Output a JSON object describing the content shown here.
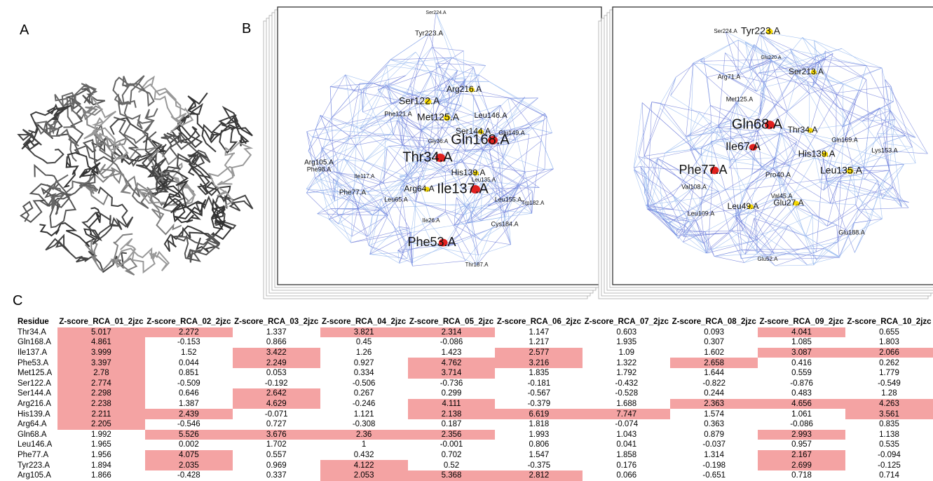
{
  "panel_labels": [
    "A",
    "B",
    "C"
  ],
  "network_left": {
    "nodes": [
      "Ser224.A",
      "Tyr223.A",
      "Arg216.A",
      "Ser122.A",
      "Phe121.A",
      "Met125.A",
      "Leu146.A",
      "Ser144.A",
      "Glu149.A",
      "Gln168.A",
      "Gly36.A",
      "Thr34.A",
      "Arg105.A",
      "Phe98.A",
      "Ile117.A",
      "His139.A",
      "Leu135.A",
      "Arg64.A",
      "Ile137.A",
      "Leu155.A",
      "Phe77.A",
      "Leu65.A",
      "Trp182.A",
      "Ile26.A",
      "Cys184.A",
      "Phe53.A",
      "Thr187.A"
    ]
  },
  "network_right": {
    "nodes": [
      "Ser224.A",
      "Tyr223.A",
      "Glu220.A",
      "Ser213.A",
      "Arg71.A",
      "Met125.A",
      "Gln68.A",
      "Thr34.A",
      "Ile67.A",
      "Gln169.A",
      "His139.A",
      "Lys153.A",
      "Phe77.A",
      "Pro40.A",
      "Leu135.A",
      "Val108.A",
      "Val45.A",
      "Glu27.A",
      "Leu49.A",
      "Leu109.A",
      "Glu188.A",
      "Glu52.A"
    ]
  },
  "table": {
    "header": [
      "Residue",
      "Z-score_RCA_01_2jzc",
      "Z-score_RCA_02_2jzc",
      "Z-score_RCA_03_2jzc",
      "Z-score_RCA_04_2jzc",
      "Z-score_RCA_05_2jzc",
      "Z-score_RCA_06_2jzc",
      "Z-score_RCA_07_2jzc",
      "Z-score_RCA_08_2jzc",
      "Z-score_RCA_09_2jzc",
      "Z-score_RCA_10_2jzc"
    ],
    "highlight_color": "#f4a3a3",
    "rows": [
      {
        "residue": "Thr34.A",
        "values": [
          5.017,
          2.272,
          1.337,
          3.821,
          2.314,
          1.147,
          0.603,
          0.093,
          4.041,
          0.655
        ],
        "highlighted": [
          0,
          1,
          3,
          4,
          8
        ]
      },
      {
        "residue": "Gln168.A",
        "values": [
          4.861,
          -0.153,
          0.866,
          0.45,
          -0.086,
          1.217,
          1.935,
          0.307,
          1.085,
          1.803
        ],
        "highlighted": [
          0
        ]
      },
      {
        "residue": "Ile137.A",
        "values": [
          3.999,
          1.52,
          3.422,
          1.26,
          1.423,
          2.577,
          1.09,
          1.602,
          3.087,
          2.066
        ],
        "highlighted": [
          0,
          2,
          5,
          8,
          9
        ]
      },
      {
        "residue": "Phe53.A",
        "values": [
          3.397,
          0.044,
          2.249,
          0.927,
          4.762,
          3.216,
          1.322,
          2.658,
          0.416,
          0.262
        ],
        "highlighted": [
          0,
          2,
          4,
          5,
          7
        ]
      },
      {
        "residue": "Met125.A",
        "values": [
          2.78,
          0.851,
          0.053,
          0.334,
          3.714,
          1.835,
          1.792,
          1.644,
          0.559,
          1.779
        ],
        "highlighted": [
          0,
          4
        ]
      },
      {
        "residue": "Ser122.A",
        "values": [
          2.774,
          -0.509,
          -0.192,
          -0.506,
          -0.736,
          -0.181,
          -0.432,
          -0.822,
          -0.876,
          -0.549
        ],
        "highlighted": [
          0
        ]
      },
      {
        "residue": "Ser144.A",
        "values": [
          2.298,
          0.646,
          2.642,
          0.267,
          0.299,
          -0.567,
          -0.528,
          0.244,
          0.483,
          1.28
        ],
        "highlighted": [
          0,
          2
        ]
      },
      {
        "residue": "Arg216.A",
        "values": [
          2.238,
          1.387,
          4.629,
          -0.246,
          4.111,
          -0.379,
          1.688,
          2.363,
          4.656,
          4.263
        ],
        "highlighted": [
          0,
          2,
          4,
          7,
          8,
          9
        ]
      },
      {
        "residue": "His139.A",
        "values": [
          2.211,
          2.439,
          -0.071,
          1.121,
          2.138,
          6.619,
          7.747,
          1.574,
          1.061,
          3.561
        ],
        "highlighted": [
          0,
          1,
          4,
          5,
          6,
          9
        ]
      },
      {
        "residue": "Arg64.A",
        "values": [
          2.205,
          -0.546,
          0.727,
          -0.308,
          0.187,
          1.818,
          -0.074,
          0.363,
          -0.086,
          0.835
        ],
        "highlighted": [
          0
        ]
      },
      {
        "residue": "Gln68.A",
        "values": [
          1.992,
          5.526,
          3.676,
          2.36,
          2.356,
          1.993,
          1.043,
          0.879,
          2.993,
          1.138
        ],
        "highlighted": [
          1,
          2,
          3,
          4,
          8
        ]
      },
      {
        "residue": "Leu146.A",
        "values": [
          1.965,
          0.002,
          1.702,
          1,
          -0.001,
          0.806,
          0.041,
          -0.037,
          0.957,
          0.535
        ],
        "highlighted": []
      },
      {
        "residue": "Phe77.A",
        "values": [
          1.956,
          4.075,
          0.557,
          0.432,
          0.702,
          1.547,
          1.858,
          1.314,
          2.167,
          -0.094
        ],
        "highlighted": [
          1,
          8
        ]
      },
      {
        "residue": "Tyr223.A",
        "values": [
          1.894,
          2.035,
          0.969,
          4.122,
          0.52,
          -0.375,
          0.176,
          -0.198,
          2.699,
          -0.125
        ],
        "highlighted": [
          1,
          3,
          8
        ]
      },
      {
        "residue": "Arg105.A",
        "values": [
          1.866,
          -0.428,
          0.337,
          2.053,
          5.368,
          2.812,
          0.066,
          -0.651,
          0.718,
          0.714
        ],
        "highlighted": [
          3,
          4,
          5
        ]
      }
    ]
  }
}
